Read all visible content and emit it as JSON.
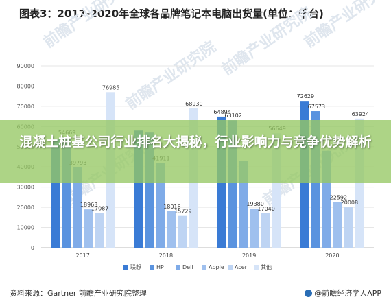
{
  "chart_data": {
    "type": "bar",
    "title": "图表3：2017-2020年全球各品牌笔记本电脑出货量(单位：千台)",
    "categories": [
      "2017",
      "2018",
      "2019",
      "2020"
    ],
    "ylim": [
      0,
      90000
    ],
    "yticks": [
      0,
      10000,
      20000,
      30000,
      40000,
      50000,
      60000,
      70000,
      80000,
      90000
    ],
    "grid": true,
    "legend_position": "bottom",
    "series": [
      {
        "name": "联想",
        "color": "#3a7bd5",
        "values": [
          54000,
          58000,
          64894,
          72629
        ]
      },
      {
        "name": "HP",
        "color": "#5a93df",
        "values": [
          54669,
          57000,
          63102,
          67573
        ]
      },
      {
        "name": "Dell",
        "color": "#7fabe8",
        "values": [
          39793,
          41911,
          43000,
          48000
        ]
      },
      {
        "name": "Apple",
        "color": "#9fc0ee",
        "values": [
          18963,
          18016,
          19380,
          22592
        ]
      },
      {
        "name": "Acer",
        "color": "#bed4f3",
        "values": [
          17087,
          15729,
          17040,
          20008
        ]
      },
      {
        "name": "其他",
        "color": "#d6e4f8",
        "values": [
          76985,
          68930,
          56649,
          63924
        ]
      }
    ],
    "data_labels": [
      [
        "",
        "54669",
        "39793",
        "18963",
        "17087",
        "76985"
      ],
      [
        "",
        "",
        "41911",
        "18016",
        "15729",
        "68930"
      ],
      [
        "64894",
        "63102",
        "",
        "19380",
        "17040",
        "56649"
      ],
      [
        "72629",
        "67573",
        "",
        "22592",
        "20008",
        "63924"
      ]
    ]
  },
  "overlay": {
    "headline": "混凝土桩基公司行业排名大揭秘，行业影响力与竞争优势解析",
    "color": "#8fc55a"
  },
  "watermark": {
    "text": "前瞻产业研究院"
  },
  "footer": {
    "source": "资料来源：Gartner 前瞻产业研究院整理",
    "brand": "@前瞻经济学人APP"
  }
}
